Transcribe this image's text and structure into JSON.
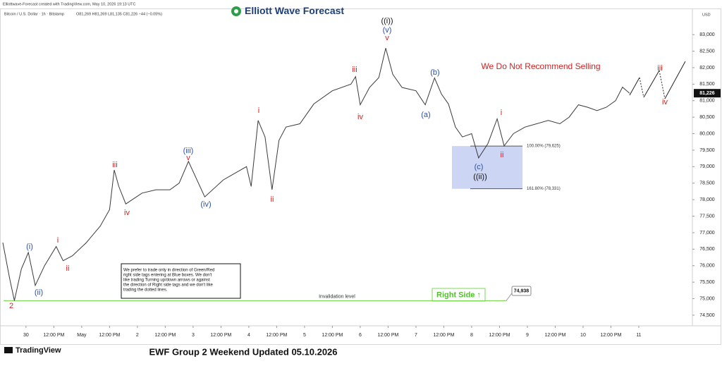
{
  "chart_data": {
    "type": "line",
    "title": "EWF Group 2 Weekend Updated 05.10.2026",
    "credit": "Elliottwave-Forecast created with TradingView.com, May 10, 2026 19:13 UTC",
    "symbol": "Bitcoin / U.S. Dollar · 1h · Bitstamp",
    "ohlc": "O81,269 H81,269 L81,135 C81,226 −44 (−0.05%)",
    "brand": "Elliott Wave Forecast",
    "currency": "USD",
    "warning": "We Do Not Recommend Selling",
    "note": [
      "We prefer to trade only in direction of Green/Red",
      "right side tags entering at Blue boxes. We don't",
      "like trading Turning up/down arrows or against",
      "the direction of Right side tags and we don't like",
      "trading the dotted lines."
    ],
    "right_side": "Right Side ↑",
    "footer_logo": "TradingView",
    "color": "#3a3a3a",
    "x": [
      -10,
      -7,
      -5,
      -2,
      1,
      4,
      8,
      13,
      16,
      20,
      26,
      32,
      36,
      38,
      40,
      43,
      50,
      56,
      62,
      66,
      70,
      77,
      85,
      90,
      95,
      97,
      100,
      103,
      106,
      109,
      112,
      118,
      124,
      132,
      140,
      142,
      144,
      148,
      152,
      155,
      158,
      162,
      168,
      172,
      176,
      179,
      182,
      185,
      188,
      192,
      195,
      199,
      203,
      206,
      210,
      215,
      220,
      225,
      230,
      234,
      238,
      242,
      246,
      250,
      254,
      257,
      260
    ],
    "values": [
      76700,
      75600,
      74938,
      75900,
      76400,
      75400,
      76000,
      76580,
      76150,
      76300,
      76700,
      77200,
      77700,
      78900,
      78400,
      77870,
      78200,
      78300,
      78300,
      78500,
      79160,
      78085,
      78600,
      78800,
      79000,
      78400,
      80400,
      79900,
      78300,
      79800,
      80200,
      80300,
      80900,
      81300,
      81500,
      81730,
      80875,
      81400,
      81700,
      82590,
      81800,
      81400,
      81300,
      80875,
      81690,
      81200,
      80900,
      80200,
      79900,
      80000,
      79265,
      79700,
      80450,
      79630,
      80000,
      80200,
      80300,
      80400,
      80300,
      80500,
      80875,
      80800,
      80700,
      80800,
      81000,
      81410,
      81226
    ],
    "xlim": [
      -11.2,
      287.1
    ],
    "ylim": [
      74178,
      83794
    ],
    "xticks": [
      {
        "value": 0,
        "label": "30"
      },
      {
        "value": 12,
        "label": "12:00 PM"
      },
      {
        "value": 24,
        "label": "May"
      },
      {
        "value": 36,
        "label": "12:00 PM"
      },
      {
        "value": 48,
        "label": "2"
      },
      {
        "value": 60,
        "label": "12:00 PM"
      },
      {
        "value": 72,
        "label": "3"
      },
      {
        "value": 84,
        "label": "12:00 PM"
      },
      {
        "value": 96,
        "label": "4"
      },
      {
        "value": 108,
        "label": "12:00 PM"
      },
      {
        "value": 120,
        "label": "5"
      },
      {
        "value": 132,
        "label": "12:00 PM"
      },
      {
        "value": 144,
        "label": "6"
      },
      {
        "value": 156,
        "label": "12:00 PM"
      },
      {
        "value": 168,
        "label": "7"
      },
      {
        "value": 180,
        "label": "12:00 PM"
      },
      {
        "value": 192,
        "label": "8"
      },
      {
        "value": 204,
        "label": "12:00 PM"
      },
      {
        "value": 216,
        "label": "9"
      },
      {
        "value": 228,
        "label": "12:00 PM"
      },
      {
        "value": 240,
        "label": "10"
      },
      {
        "value": 252,
        "label": "12:00 PM"
      },
      {
        "value": 264,
        "label": "11"
      }
    ],
    "yticks": [
      {
        "value": 74500,
        "label": "74,500"
      },
      {
        "value": 75000,
        "label": "75,000"
      },
      {
        "value": 75500,
        "label": "75,500"
      },
      {
        "value": 76000,
        "label": "76,000"
      },
      {
        "value": 76500,
        "label": "76,500"
      },
      {
        "value": 77000,
        "label": "77,000"
      },
      {
        "value": 77500,
        "label": "77,500"
      },
      {
        "value": 78000,
        "label": "78,000"
      },
      {
        "value": 78500,
        "label": "78,500"
      },
      {
        "value": 79000,
        "label": "79,000"
      },
      {
        "value": 79500,
        "label": "79,500"
      },
      {
        "value": 80000,
        "label": "80,000"
      },
      {
        "value": 80500,
        "label": "80,500"
      },
      {
        "value": 81000,
        "label": "81,000"
      },
      {
        "value": 81500,
        "label": "81,500"
      },
      {
        "value": 82000,
        "label": "82,000"
      },
      {
        "value": 82500,
        "label": "82,500"
      },
      {
        "value": 83000,
        "label": "83,000"
      }
    ],
    "grid": false,
    "last_price": {
      "value": 81226,
      "label": "81,226"
    },
    "invalidation": {
      "value": 74938,
      "label": "74,938",
      "text": "Invalidation level",
      "color": "#7ed957"
    },
    "fib_levels": [
      {
        "value": 79625,
        "label": "100.00% (79,625)"
      },
      {
        "value": 78331,
        "label": "161.80% (78,331)"
      }
    ],
    "wave_labels": [
      {
        "text": "((i))",
        "color": "#111111"
      },
      {
        "text": "(v)",
        "color": "#2a4fa8"
      },
      {
        "text": "v",
        "color": "#d42020"
      },
      {
        "text": "iii",
        "color": "#d42020"
      },
      {
        "text": "iv",
        "color": "#d42020"
      },
      {
        "text": "i",
        "color": "#d42020"
      },
      {
        "text": "ii",
        "color": "#d42020"
      },
      {
        "text": "(iii)",
        "color": "#2a4fa8"
      },
      {
        "text": "v",
        "color": "#d42020"
      },
      {
        "text": "(iv)",
        "color": "#2a4fa8"
      },
      {
        "text": "iii",
        "color": "#d42020"
      },
      {
        "text": "iv",
        "color": "#d42020"
      },
      {
        "text": "(i)",
        "color": "#2a4fa8"
      },
      {
        "text": "i",
        "color": "#d42020"
      },
      {
        "text": "ii",
        "color": "#d42020"
      },
      {
        "text": "(ii)",
        "color": "#2a4fa8"
      },
      {
        "text": "2",
        "color": "#d42020"
      },
      {
        "text": "(b)",
        "color": "#2a4fa8"
      },
      {
        "text": "(a)",
        "color": "#2a4fa8"
      },
      {
        "text": "i",
        "color": "#d42020"
      },
      {
        "text": "ii",
        "color": "#d42020"
      },
      {
        "text": "(c)",
        "color": "#2a4fa8"
      },
      {
        "text": "((ii))",
        "color": "#111111"
      },
      {
        "text": "iii",
        "color": "#d42020"
      },
      {
        "text": "iv",
        "color": "#d42020"
      }
    ]
  }
}
